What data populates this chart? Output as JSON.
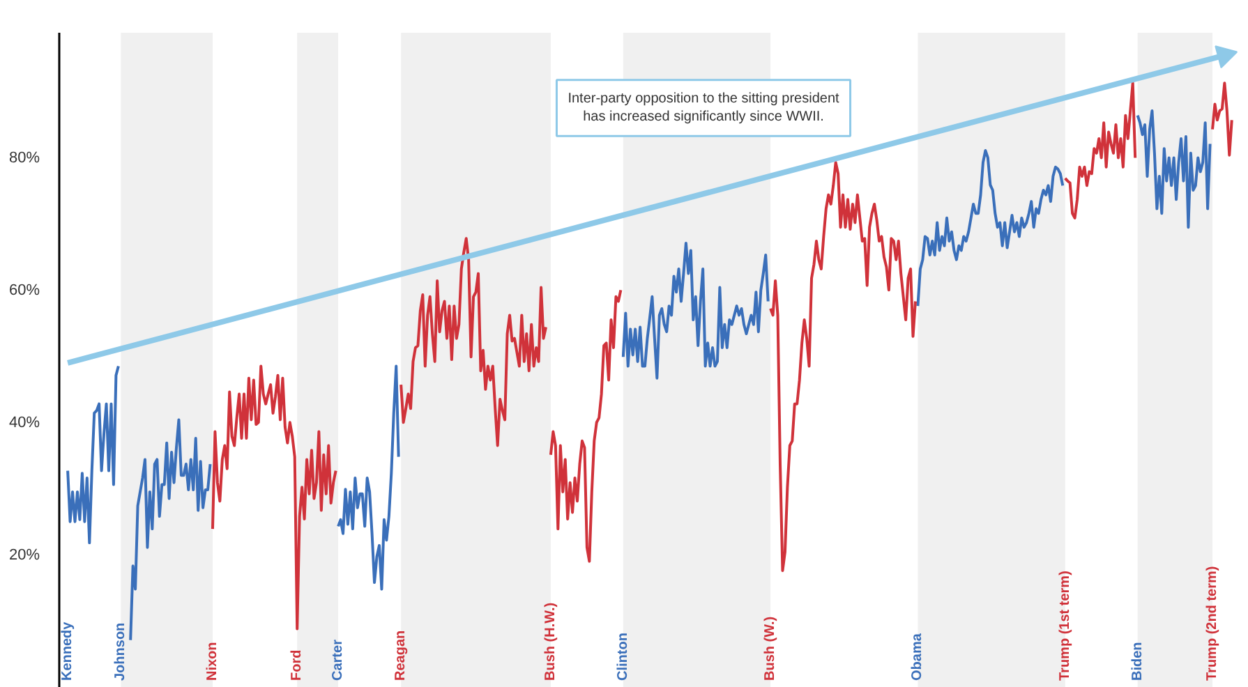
{
  "chart_data": {
    "type": "line",
    "ylim": [
      0,
      99
    ],
    "yticks": [
      {
        "value": 20,
        "label": "20%"
      },
      {
        "value": 40,
        "label": "40%"
      },
      {
        "value": 60,
        "label": "60%"
      },
      {
        "value": 80,
        "label": "80%"
      }
    ],
    "grid": false,
    "annotations": [
      "Inter-party opposition to the sitting president\nhas increased significantly since WWII."
    ],
    "categories": [
      "Kennedy",
      null,
      null,
      null,
      null,
      null,
      null,
      null,
      null,
      null,
      null,
      null,
      null,
      null,
      null,
      null,
      null,
      null,
      null,
      null,
      null,
      null,
      "Johnson",
      null,
      null,
      null,
      null,
      null,
      null,
      null,
      null,
      null,
      null,
      null,
      null,
      null,
      null,
      null,
      null,
      null,
      null,
      null,
      null,
      null,
      null,
      null,
      null,
      null,
      null,
      null,
      null,
      null,
      null,
      null,
      null,
      null,
      null,
      null,
      null,
      null,
      "Nixon",
      null,
      null,
      null,
      null,
      null,
      null,
      null,
      null,
      null,
      null,
      null,
      null,
      null,
      null,
      null,
      null,
      null,
      null,
      null,
      null,
      null,
      null,
      null,
      null,
      null,
      null,
      null,
      null,
      null,
      null,
      null,
      null,
      null,
      null,
      "Ford",
      null,
      null,
      null,
      null,
      null,
      null,
      null,
      null,
      null,
      null,
      null,
      null,
      null,
      null,
      null,
      null,
      "Carter",
      null,
      null,
      null,
      null,
      null,
      null,
      null,
      null,
      null,
      null,
      null,
      null,
      null,
      null,
      null,
      null,
      null,
      null,
      null,
      null,
      null,
      null,
      null,
      null,
      null,
      "Reagan",
      null,
      null,
      null,
      null,
      null,
      null,
      null,
      null,
      null,
      null,
      null,
      null,
      null,
      null,
      null,
      null,
      null,
      null,
      null,
      null,
      null,
      null,
      null,
      null,
      null,
      null,
      null,
      null,
      null,
      null,
      null,
      null,
      null,
      null,
      null,
      null,
      null,
      null,
      null,
      null,
      null,
      null,
      null,
      null,
      null,
      null,
      null,
      null,
      null,
      null,
      null,
      null,
      null,
      null,
      null,
      null,
      null,
      null,
      null,
      null,
      null,
      "Bush (H.W.)",
      null,
      null,
      null,
      null,
      null,
      null,
      null,
      null,
      null,
      null,
      null,
      null,
      null,
      null,
      null,
      null,
      null,
      null,
      null,
      null,
      null,
      null,
      null,
      null,
      null,
      null,
      null,
      null,
      null,
      "Clinton",
      null,
      null,
      null,
      null,
      null,
      null,
      null,
      null,
      null,
      null,
      null,
      null,
      null,
      null,
      null,
      null,
      null,
      null,
      null,
      null,
      null,
      null,
      null,
      null,
      null,
      null,
      null,
      null,
      null,
      null,
      null,
      null,
      null,
      null,
      null,
      null,
      null,
      null,
      null,
      null,
      null,
      null,
      null,
      null,
      null,
      null,
      null,
      null,
      null,
      null,
      null,
      null,
      null,
      null,
      null,
      null,
      null,
      null,
      null,
      null,
      "Bush (W.)",
      null,
      null,
      null,
      null,
      null,
      null,
      null,
      null,
      null,
      null,
      null,
      null,
      null,
      null,
      null,
      null,
      null,
      null,
      null,
      null,
      null,
      null,
      null,
      null,
      null,
      null,
      null,
      null,
      null,
      null,
      null,
      null,
      null,
      null,
      null,
      null,
      null,
      null,
      null,
      null,
      null,
      null,
      null,
      null,
      null,
      null,
      null,
      null,
      null,
      null,
      null,
      null,
      null,
      null,
      null,
      null,
      null,
      null,
      null,
      null,
      "Obama",
      null,
      null,
      null,
      null,
      null,
      null,
      null,
      null,
      null,
      null,
      null,
      null,
      null,
      null,
      null,
      null,
      null,
      null,
      null,
      null,
      null,
      null,
      null,
      null,
      null,
      null,
      null,
      null,
      null,
      null,
      null,
      null,
      null,
      null,
      null,
      null,
      null,
      null,
      null,
      null,
      null,
      null,
      null,
      null,
      null,
      null,
      null,
      null,
      null,
      null,
      null,
      null,
      null,
      null,
      null,
      null,
      null,
      null,
      null,
      null,
      "Trump (1st term)",
      null,
      null,
      null,
      null,
      null,
      null,
      null,
      null,
      null,
      null,
      null,
      null,
      null,
      null,
      null,
      null,
      null,
      null,
      null,
      null,
      null,
      null,
      null,
      null,
      null,
      null,
      null,
      null,
      null,
      "Biden",
      null,
      null,
      null,
      null,
      null,
      null,
      null,
      null,
      null,
      null,
      null,
      null,
      null,
      null,
      null,
      null,
      null,
      null,
      null,
      null,
      null,
      null,
      null,
      null,
      null,
      null,
      null,
      null,
      null,
      null,
      "Trump (2nd term)",
      null,
      null,
      null,
      null,
      null,
      null,
      null,
      null
    ],
    "bands": [
      {
        "axis": "x",
        "from": "Johnson",
        "to": "Nixon",
        "color": "#f0f0f0"
      },
      {
        "axis": "x",
        "from": "Ford",
        "to": "Carter",
        "color": "#f0f0f0"
      },
      {
        "axis": "x",
        "from": "Reagan",
        "to": "Bush (H.W.)",
        "color": "#f0f0f0"
      },
      {
        "axis": "x",
        "from": "Clinton",
        "to": "Bush (W.)",
        "color": "#f0f0f0"
      },
      {
        "axis": "x",
        "from": "Obama",
        "to": "Trump (1st term)",
        "color": "#f0f0f0"
      },
      {
        "axis": "x",
        "from": "Biden",
        "to": "Trump (2nd term)",
        "color": "#f0f0f0"
      }
    ],
    "series": [
      {
        "color": "#3a6fba",
        "values": [
          32.8,
          25.1,
          29.6,
          25.1,
          29.6,
          25.4,
          32.4,
          25.1,
          31.7,
          21.9,
          32.8,
          41.5,
          41.9,
          42.9,
          32.8,
          38.4,
          42.9,
          32.8,
          42.9,
          30.7,
          47.2,
          48.6,
          null,
          null,
          null,
          null,
          7.2,
          18.4,
          14.9,
          27.5,
          29.6,
          31.7,
          34.5,
          21.2,
          29.6,
          24.0,
          33.8,
          34.5,
          25.9,
          30.7,
          30.7,
          37.0,
          28.6,
          35.6,
          31.0,
          36.3,
          40.5,
          32.1,
          32.1,
          33.8,
          29.9,
          34.5,
          29.9,
          37.7,
          26.8,
          34.2,
          27.2,
          29.9,
          29.9,
          33.8,
          null,
          null,
          null,
          null,
          null,
          null,
          null,
          null,
          null,
          null,
          null,
          null,
          null,
          null,
          null,
          null,
          null,
          null,
          null,
          null,
          null,
          null,
          null,
          null,
          null,
          null,
          null,
          null,
          null,
          null,
          null,
          null,
          null,
          null,
          null,
          null,
          null,
          null,
          null,
          null,
          null,
          null,
          null,
          null,
          null,
          null,
          null,
          null,
          null,
          null,
          null,
          null,
          24.4,
          25.4,
          23.3,
          30.0,
          24.7,
          29.6,
          24.0,
          31.7,
          27.2,
          29.3,
          29.3,
          24.4,
          31.7,
          29.6,
          23.3,
          15.9,
          19.8,
          21.5,
          14.9,
          25.4,
          22.3,
          25.9,
          32.4,
          41.5,
          48.6,
          34.9,
          null,
          null,
          null,
          null,
          null,
          null,
          null,
          null,
          null,
          null,
          null,
          null,
          null,
          null,
          null,
          null,
          null,
          null,
          null,
          null,
          null,
          null,
          null,
          null,
          null,
          null,
          null,
          null,
          null,
          null,
          null,
          null,
          null,
          null,
          null,
          null,
          null,
          null,
          null,
          null,
          null,
          null,
          null,
          null,
          null,
          null,
          null,
          null,
          null,
          null,
          null,
          null,
          null,
          null,
          null,
          null,
          null,
          null,
          null,
          null,
          null,
          null,
          null,
          null,
          null,
          null,
          null,
          null,
          null,
          null,
          null,
          null,
          null,
          null,
          null,
          null,
          null,
          null,
          null,
          null,
          null,
          null,
          null,
          null,
          null,
          null,
          null,
          null,
          null,
          null,
          null,
          null,
          50.0,
          56.6,
          48.6,
          54.2,
          50.3,
          54.2,
          49.3,
          54.5,
          48.6,
          48.6,
          52.8,
          55.9,
          59.1,
          52.8,
          46.8,
          56.3,
          57.3,
          54.9,
          53.8,
          57.7,
          56.3,
          62.2,
          59.8,
          63.3,
          58.4,
          62.6,
          67.2,
          62.6,
          66.1,
          55.6,
          59.1,
          51.7,
          58.4,
          63.3,
          48.6,
          52.1,
          48.6,
          51.4,
          48.6,
          49.3,
          60.5,
          51.4,
          54.9,
          51.4,
          55.6,
          54.9,
          56.3,
          57.7,
          56.3,
          57.3,
          54.9,
          53.5,
          54.9,
          56.3,
          54.9,
          59.8,
          53.8,
          60.1,
          62.6,
          65.4,
          58.4,
          null,
          null,
          null,
          null,
          null,
          null,
          null,
          null,
          null,
          null,
          null,
          null,
          null,
          null,
          null,
          null,
          null,
          null,
          null,
          null,
          null,
          null,
          null,
          null,
          null,
          null,
          null,
          null,
          null,
          null,
          null,
          null,
          null,
          null,
          null,
          null,
          null,
          null,
          null,
          null,
          null,
          null,
          null,
          null,
          null,
          null,
          null,
          null,
          null,
          null,
          null,
          null,
          null,
          null,
          null,
          null,
          null,
          null,
          null,
          null,
          null,
          57.7,
          63.3,
          64.7,
          68.2,
          67.9,
          65.4,
          67.5,
          65.4,
          70.3,
          66.1,
          68.2,
          66.8,
          71.0,
          67.5,
          68.9,
          66.1,
          64.7,
          66.8,
          66.1,
          68.2,
          67.5,
          68.9,
          71.0,
          73.1,
          71.7,
          71.7,
          74.5,
          79.4,
          81.2,
          80.1,
          76.0,
          75.2,
          71.7,
          69.6,
          70.3,
          66.8,
          70.3,
          66.5,
          68.9,
          71.4,
          68.9,
          70.3,
          68.2,
          71.0,
          69.6,
          70.3,
          71.7,
          73.5,
          69.6,
          72.4,
          71.7,
          73.8,
          75.2,
          74.5,
          75.9,
          73.5,
          77.3,
          78.7,
          78.4,
          77.7,
          75.9,
          null,
          null,
          null,
          null,
          null,
          null,
          null,
          null,
          null,
          null,
          null,
          null,
          null,
          null,
          null,
          null,
          null,
          null,
          null,
          null,
          null,
          null,
          null,
          null,
          null,
          null,
          null,
          null,
          null,
          null,
          86.5,
          85.4,
          83.6,
          85.1,
          77.3,
          84.4,
          87.2,
          80.8,
          72.4,
          77.3,
          71.7,
          81.5,
          76.6,
          80.1,
          75.9,
          80.1,
          73.8,
          79.4,
          83.0,
          76.6,
          83.3,
          69.6,
          80.8,
          75.2,
          75.9,
          80.1,
          78.0,
          79.4,
          85.4,
          72.4,
          82.2,
          null,
          null,
          null,
          null,
          null,
          null,
          null,
          null,
          null
        ]
      },
      {
        "color": "#d0323a",
        "values": [
          null,
          null,
          null,
          null,
          null,
          null,
          null,
          null,
          null,
          null,
          null,
          null,
          null,
          null,
          null,
          null,
          null,
          null,
          null,
          null,
          null,
          null,
          null,
          null,
          null,
          null,
          null,
          null,
          null,
          null,
          null,
          null,
          null,
          null,
          null,
          null,
          null,
          null,
          null,
          null,
          null,
          null,
          null,
          null,
          null,
          null,
          null,
          null,
          null,
          null,
          null,
          null,
          null,
          null,
          null,
          null,
          null,
          null,
          null,
          null,
          24.0,
          38.7,
          31.0,
          28.2,
          34.5,
          36.6,
          33.1,
          44.7,
          38.0,
          36.6,
          40.8,
          44.4,
          37.7,
          44.4,
          37.7,
          46.8,
          40.5,
          46.5,
          39.8,
          40.1,
          48.6,
          44.4,
          42.9,
          44.4,
          45.8,
          41.5,
          44.0,
          47.2,
          40.5,
          46.8,
          39.4,
          37.0,
          40.1,
          38.0,
          34.9,
          8.9,
          25.9,
          30.3,
          25.5,
          34.5,
          29.3,
          35.9,
          28.6,
          31.0,
          38.7,
          26.8,
          35.2,
          29.3,
          36.6,
          27.9,
          31.0,
          32.8,
          null,
          null,
          null,
          null,
          null,
          null,
          null,
          null,
          null,
          null,
          null,
          null,
          null,
          null,
          null,
          null,
          null,
          null,
          null,
          null,
          null,
          null,
          null,
          null,
          null,
          null,
          45.8,
          40.1,
          42.2,
          44.4,
          42.2,
          49.3,
          51.4,
          51.7,
          57.0,
          59.4,
          48.6,
          56.3,
          59.1,
          53.5,
          49.3,
          61.5,
          53.8,
          57.0,
          58.4,
          52.8,
          57.7,
          49.6,
          57.7,
          52.8,
          54.9,
          63.3,
          65.8,
          67.9,
          64.7,
          50.0,
          59.1,
          59.8,
          62.6,
          47.9,
          51.0,
          45.1,
          48.6,
          46.5,
          48.6,
          42.2,
          36.6,
          43.6,
          41.9,
          40.5,
          53.5,
          56.3,
          52.4,
          52.8,
          50.7,
          48.6,
          56.3,
          49.3,
          53.5,
          47.9,
          54.9,
          48.6,
          51.4,
          49.3,
          60.5,
          52.8,
          54.5,
          null,
          35.2,
          38.7,
          36.6,
          24.0,
          36.6,
          29.6,
          34.5,
          25.5,
          31.0,
          26.5,
          31.7,
          28.2,
          33.8,
          37.3,
          36.3,
          21.2,
          19.1,
          29.6,
          37.3,
          40.1,
          40.8,
          44.4,
          51.7,
          52.1,
          46.5,
          55.6,
          51.4,
          59.1,
          58.4,
          60.1,
          null,
          null,
          null,
          null,
          null,
          null,
          null,
          null,
          null,
          null,
          null,
          null,
          null,
          null,
          null,
          null,
          null,
          null,
          null,
          null,
          null,
          null,
          null,
          null,
          null,
          null,
          null,
          null,
          null,
          null,
          null,
          null,
          null,
          null,
          null,
          null,
          null,
          null,
          null,
          null,
          null,
          null,
          null,
          null,
          null,
          null,
          null,
          null,
          null,
          null,
          null,
          null,
          null,
          null,
          null,
          null,
          null,
          null,
          null,
          null,
          null,
          57.3,
          56.3,
          61.5,
          56.3,
          33.8,
          17.7,
          20.5,
          30.3,
          36.6,
          37.3,
          42.9,
          42.9,
          46.5,
          52.1,
          55.6,
          52.8,
          48.6,
          61.9,
          64.0,
          67.5,
          64.7,
          63.3,
          68.2,
          72.4,
          74.5,
          73.1,
          75.9,
          79.4,
          77.7,
          69.6,
          74.5,
          69.6,
          73.8,
          69.3,
          73.1,
          70.3,
          74.5,
          71.0,
          67.5,
          67.9,
          60.8,
          69.6,
          71.7,
          73.1,
          70.7,
          67.5,
          68.2,
          65.1,
          63.6,
          60.1,
          67.9,
          67.5,
          64.7,
          67.5,
          62.6,
          59.1,
          55.6,
          61.9,
          63.3,
          53.1,
          58.4,
          null,
          null,
          null,
          null,
          null,
          null,
          null,
          null,
          null,
          null,
          null,
          null,
          null,
          null,
          null,
          null,
          null,
          null,
          null,
          null,
          null,
          null,
          null,
          null,
          null,
          null,
          null,
          null,
          null,
          null,
          null,
          null,
          null,
          null,
          null,
          null,
          null,
          null,
          null,
          null,
          null,
          null,
          null,
          null,
          null,
          null,
          null,
          null,
          null,
          null,
          null,
          null,
          null,
          null,
          null,
          null,
          null,
          null,
          null,
          null,
          null,
          77.0,
          76.6,
          76.3,
          71.7,
          71.0,
          73.8,
          78.7,
          77.3,
          78.7,
          75.9,
          78.0,
          77.7,
          81.5,
          80.8,
          83.0,
          80.1,
          85.4,
          78.7,
          84.0,
          82.2,
          80.8,
          85.1,
          80.1,
          83.0,
          78.7,
          86.5,
          83.0,
          87.2,
          91.4,
          80.1,
          null,
          null,
          null,
          null,
          null,
          null,
          null,
          null,
          null,
          null,
          null,
          null,
          null,
          null,
          null,
          null,
          null,
          null,
          null,
          null,
          null,
          null,
          null,
          null,
          null,
          null,
          null,
          null,
          null,
          null,
          null,
          84.4,
          88.2,
          85.8,
          87.2,
          87.5,
          91.4,
          87.2,
          80.5,
          85.8
        ]
      },
      {
        "type": "line",
        "color": "#8ec9e8",
        "values": [
          49.1,
          null,
          null,
          null,
          null,
          null,
          null,
          null,
          null,
          null,
          null,
          null,
          null,
          null,
          null,
          null,
          null,
          null,
          null,
          null,
          null,
          null,
          null,
          null,
          null,
          null,
          null,
          null,
          null,
          null,
          null,
          null,
          null,
          null,
          null,
          null,
          null,
          null,
          null,
          null,
          null,
          null,
          null,
          null,
          null,
          null,
          null,
          null,
          null,
          null,
          null,
          null,
          null,
          null,
          null,
          null,
          null,
          null,
          null,
          null,
          null,
          null,
          null,
          null,
          null,
          null,
          null,
          null,
          null,
          null,
          null,
          null,
          null,
          null,
          null,
          null,
          null,
          null,
          null,
          null,
          null,
          null,
          null,
          null,
          null,
          null,
          null,
          null,
          null,
          null,
          null,
          null,
          null,
          null,
          null,
          null,
          null,
          null,
          null,
          null,
          null,
          null,
          null,
          null,
          null,
          null,
          null,
          null,
          null,
          null,
          null,
          null,
          null,
          null,
          null,
          null,
          null,
          null,
          null,
          null,
          null,
          null,
          null,
          null,
          null,
          null,
          null,
          null,
          null,
          null,
          null,
          null,
          null,
          null,
          null,
          null,
          null,
          null,
          null,
          null,
          null,
          null,
          null,
          null,
          null,
          null,
          null,
          null,
          null,
          null,
          null,
          null,
          null,
          null,
          null,
          null,
          null,
          null,
          null,
          null,
          null,
          null,
          null,
          null,
          null,
          null,
          null,
          null,
          null,
          null,
          null,
          null,
          null,
          null,
          null,
          null,
          null,
          null,
          null,
          null,
          null,
          null,
          null,
          null,
          null,
          null,
          null,
          null,
          null,
          null,
          null,
          null,
          null,
          null,
          null,
          null,
          null,
          null,
          null,
          null,
          null,
          null,
          null,
          null,
          null,
          null,
          null,
          null,
          null,
          null,
          null,
          null,
          null,
          null,
          null,
          null,
          null,
          null,
          null,
          null,
          null,
          null,
          null,
          null,
          null,
          null,
          null,
          null,
          null,
          null,
          null,
          null,
          null,
          null,
          null,
          null,
          null,
          null,
          null,
          null,
          null,
          null,
          null,
          null,
          null,
          null,
          null,
          null,
          null,
          null,
          null,
          null,
          null,
          null,
          null,
          null,
          null,
          null,
          null,
          null,
          null,
          null,
          null,
          null,
          null,
          null,
          null,
          null,
          null,
          null,
          null,
          null,
          null,
          null,
          null,
          null,
          null,
          null,
          null,
          null,
          null,
          null,
          null,
          null,
          null,
          null,
          null,
          null,
          null,
          null,
          null,
          null,
          null,
          null,
          null,
          null,
          null,
          null,
          null,
          null,
          null,
          null,
          null,
          null,
          null,
          null,
          null,
          null,
          null,
          null,
          null,
          null,
          null,
          null,
          null,
          null,
          null,
          null,
          null,
          null,
          null,
          null,
          null,
          null,
          null,
          null,
          null,
          null,
          null,
          null,
          null,
          null,
          null,
          null,
          null,
          null,
          null,
          null,
          null,
          null,
          null,
          null,
          null,
          null,
          null,
          null,
          null,
          null,
          null,
          null,
          null,
          null,
          null,
          null,
          null,
          null,
          null,
          null,
          null,
          null,
          null,
          null,
          null,
          null,
          null,
          null,
          null,
          null,
          null,
          null,
          null,
          null,
          null,
          null,
          null,
          null,
          null,
          null,
          null,
          null,
          null,
          null,
          null,
          null,
          null,
          null,
          null,
          null,
          null,
          null,
          null,
          null,
          null,
          null,
          null,
          null,
          null,
          null,
          null,
          null,
          null,
          null,
          null,
          null,
          null,
          null,
          null,
          null,
          null,
          null,
          null,
          null,
          null,
          null,
          null,
          null,
          null,
          null,
          null,
          null,
          null,
          null,
          null,
          null,
          null,
          null,
          null,
          null,
          null,
          null,
          null,
          null,
          null,
          null,
          null,
          null,
          null,
          null,
          null,
          null,
          null,
          null,
          null,
          null,
          null,
          null,
          null,
          null,
          null,
          null,
          null,
          null,
          null,
          null,
          null,
          null,
          null,
          null,
          null,
          null,
          null,
          null,
          null,
          null,
          null,
          null,
          null,
          null,
          null,
          null,
          null,
          null,
          null,
          null,
          null,
          null,
          null,
          null,
          null,
          95.6,
          null,
          null,
          null
        ]
      }
    ]
  }
}
